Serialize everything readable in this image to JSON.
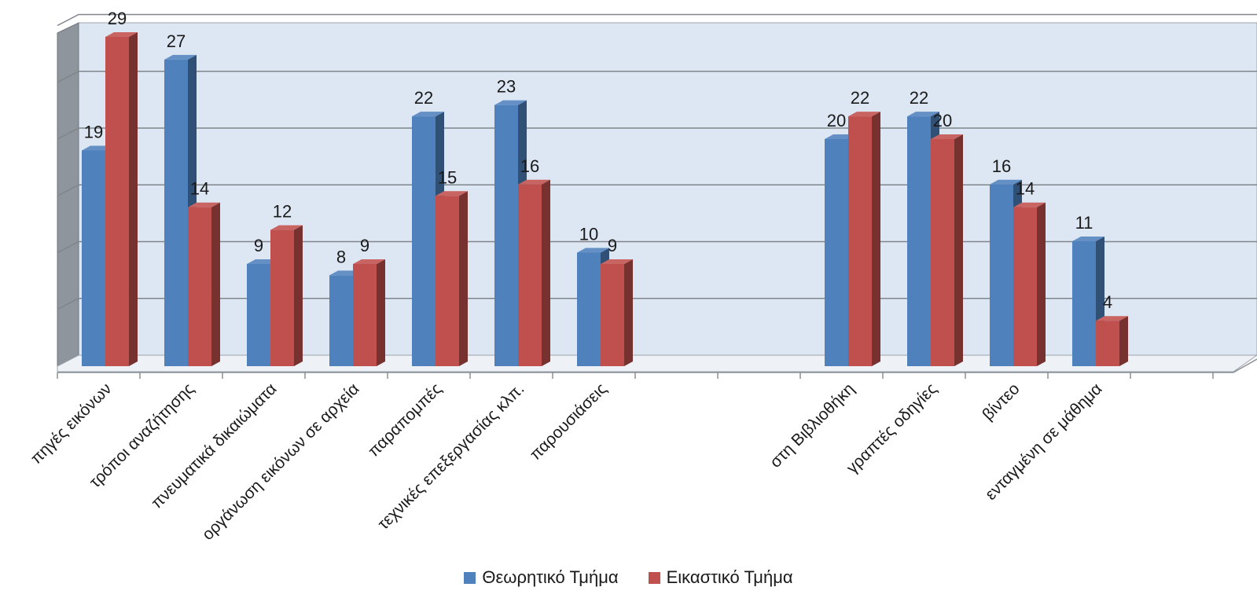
{
  "chart_data": {
    "type": "bar",
    "title": "",
    "xlabel": "",
    "ylabel": "",
    "ylim": [
      0,
      30
    ],
    "grid": true,
    "legend_position": "bottom",
    "categories": [
      "πηγές εικόνων",
      "τρόποι αναζήτησης",
      "πνευματικά δικαιώματα",
      "οργάνωση εικόνων σε αρχεία",
      "παραπομπές",
      "τεχνικές επεξεργασίας κλπ.",
      "παρουσιάσεις",
      "",
      "",
      "στη Βιβλιοθήκη",
      "γραπτές οδηγίες",
      "βίντεο",
      "ενταγμένη σε μάθημα",
      ""
    ],
    "series": [
      {
        "name": "Θεωρητικό Τμήμα",
        "color": "#4f81bd",
        "values": [
          19,
          27,
          9,
          8,
          22,
          23,
          10,
          null,
          null,
          20,
          22,
          16,
          11,
          null
        ]
      },
      {
        "name": "Εικαστικό Τμήμα",
        "color": "#c0504d",
        "values": [
          29,
          14,
          12,
          9,
          15,
          16,
          9,
          null,
          null,
          22,
          20,
          14,
          4,
          null
        ]
      }
    ]
  }
}
